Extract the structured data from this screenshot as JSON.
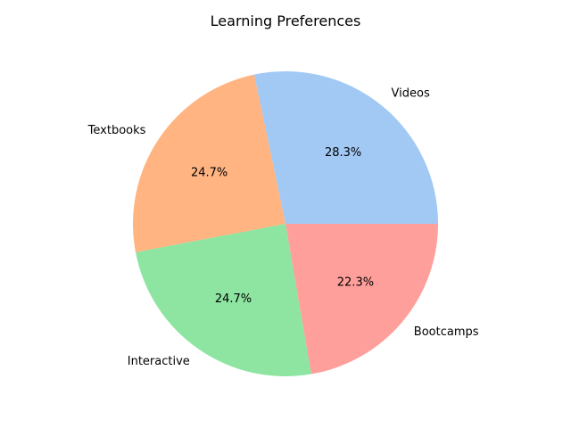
{
  "chart_data": {
    "type": "pie",
    "title": "Learning Preferences",
    "labels": [
      "Videos",
      "Textbooks",
      "Interactive",
      "Bootcamps"
    ],
    "values": [
      28.3,
      24.7,
      24.7,
      22.3
    ],
    "percent_labels": [
      "28.3%",
      "24.7%",
      "24.7%",
      "22.3%"
    ],
    "colors": [
      "#a1c9f4",
      "#ffb482",
      "#8de5a1",
      "#ff9f9b"
    ],
    "start_angle_deg": 0,
    "direction": "counterclockwise",
    "legend": "none"
  }
}
